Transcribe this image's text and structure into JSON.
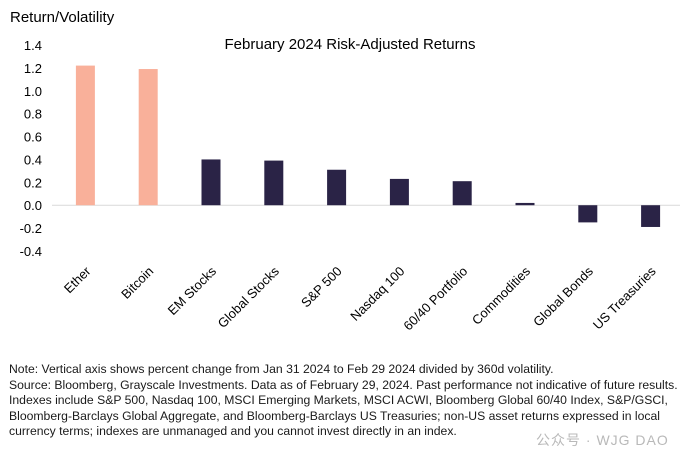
{
  "chart_data": {
    "type": "bar",
    "title": "February 2024 Risk-Adjusted Returns",
    "ylabel": "Return/Volatility",
    "xlabel": "",
    "ylim": [
      -0.4,
      1.4
    ],
    "yticks": [
      "1.4",
      "1.2",
      "1.0",
      "0.8",
      "0.6",
      "0.4",
      "0.2",
      "0.0",
      "-0.2",
      "-0.4"
    ],
    "ytick_values": [
      1.4,
      1.2,
      1.0,
      0.8,
      0.6,
      0.4,
      0.2,
      0.0,
      -0.2,
      -0.4
    ],
    "categories": [
      "Ether",
      "Bitcoin",
      "EM Stocks",
      "Global Stocks",
      "S&P 500",
      "Nasdaq 100",
      "60/40 Portfolio",
      "Commodities",
      "Global Bonds",
      "US Treasuries"
    ],
    "values": [
      1.22,
      1.19,
      0.4,
      0.39,
      0.31,
      0.23,
      0.21,
      0.02,
      -0.15,
      -0.19
    ],
    "colors": {
      "crypto": "#f9b09a",
      "traditional": "#2a2346",
      "gridline": "#d9d9d9"
    },
    "bar_color_groups": [
      "crypto",
      "crypto",
      "traditional",
      "traditional",
      "traditional",
      "traditional",
      "traditional",
      "traditional",
      "traditional",
      "traditional"
    ],
    "grid": false,
    "legend": "none"
  },
  "note": {
    "line1": "Note: Vertical axis shows percent change from Jan 31 2024 to Feb 29 2024 divided by 360d volatility.",
    "line2": "Source: Bloomberg, Grayscale Investments. Data as of February 29, 2024. Past performance not indicative of future results. Indexes include S&P 500, Nasdaq 100, MSCI Emerging Markets, MSCI ACWI, Bloomberg Global 60/40 Index, S&P/GSCI, Bloomberg-Barclays Global Aggregate, and Bloomberg-Barclays US Treasuries; non-US asset returns expressed in local currency terms; indexes are unmanaged and you cannot invest directly in an index."
  },
  "watermark": "公众号 · WJG DAO"
}
